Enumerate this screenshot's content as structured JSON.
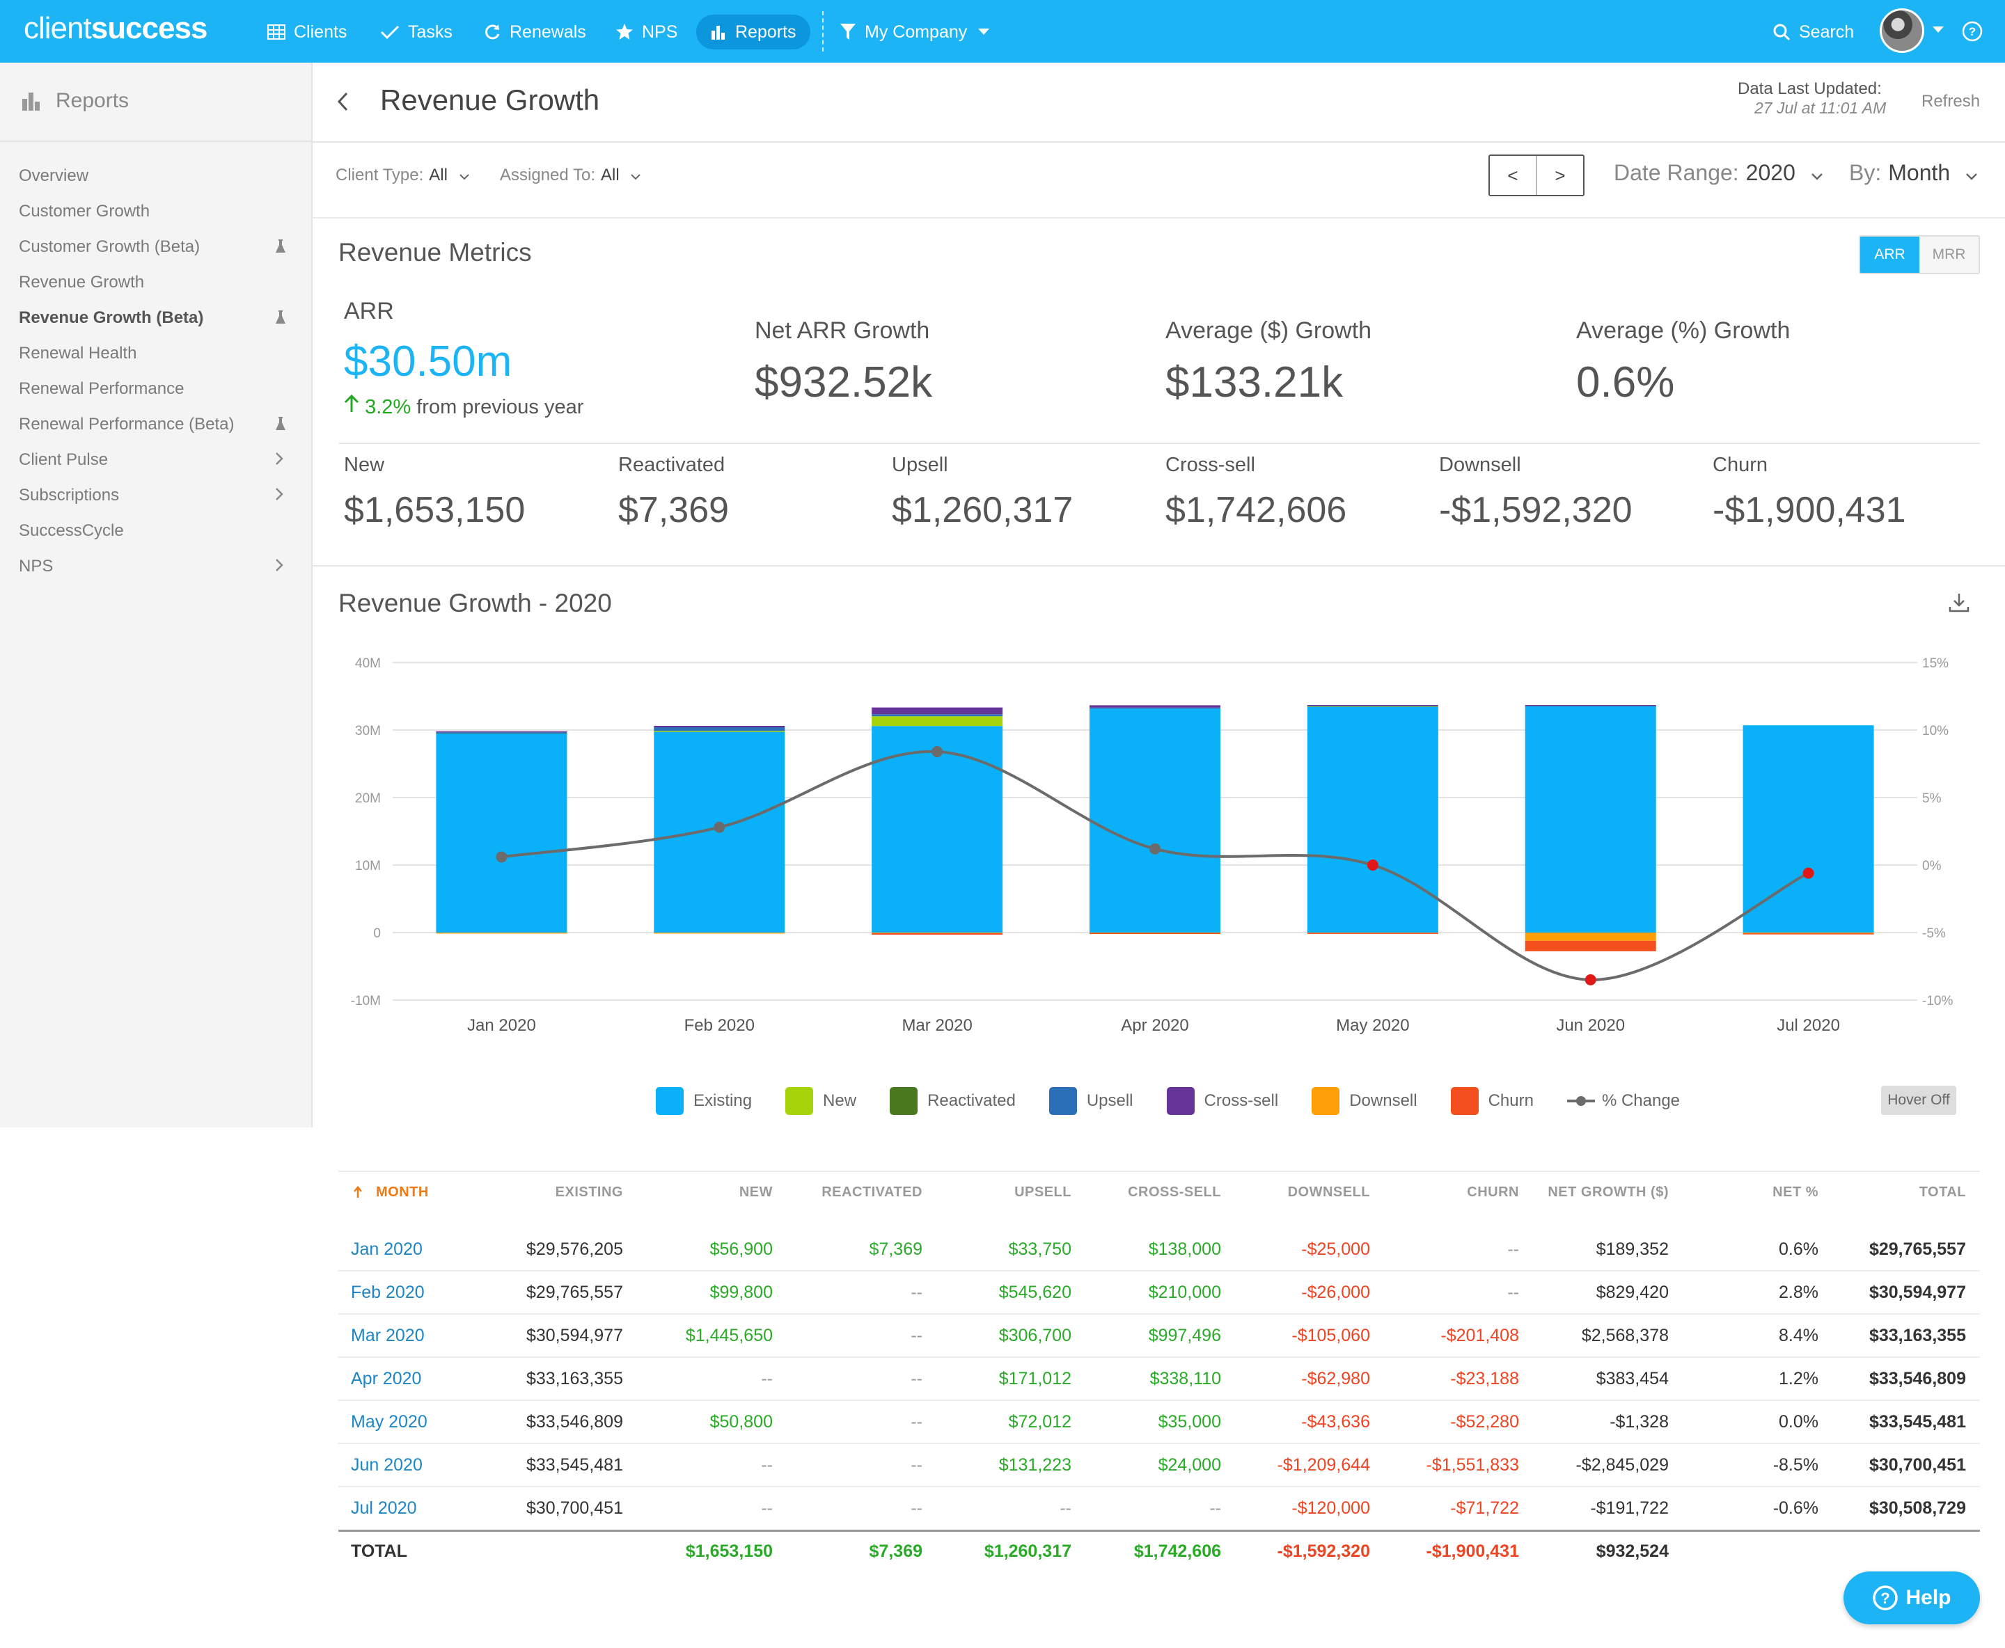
{
  "nav": {
    "logo_thin": "client",
    "logo_bold": "success",
    "items": [
      {
        "label": "Clients",
        "icon": "table-icon"
      },
      {
        "label": "Tasks",
        "icon": "check-icon"
      },
      {
        "label": "Renewals",
        "icon": "refresh-icon"
      },
      {
        "label": "NPS",
        "icon": "star-icon"
      },
      {
        "label": "Reports",
        "icon": "bar-chart-icon"
      }
    ],
    "company": "My Company",
    "search": "Search"
  },
  "sidebar": {
    "title": "Reports",
    "items": [
      {
        "label": "Overview"
      },
      {
        "label": "Customer Growth"
      },
      {
        "label": "Customer Growth (Beta)"
      },
      {
        "label": "Revenue Growth"
      },
      {
        "label": "Revenue Growth (Beta)"
      },
      {
        "label": "Renewal Health"
      },
      {
        "label": "Renewal Performance"
      },
      {
        "label": "Renewal Performance (Beta)"
      },
      {
        "label": "Client Pulse"
      },
      {
        "label": "Subscriptions"
      },
      {
        "label": "SuccessCycle"
      },
      {
        "label": "NPS"
      }
    ]
  },
  "header": {
    "title": "Revenue Growth",
    "last_updated_label": "Data Last Updated:",
    "last_updated_value": "27 Jul at 11:01 AM",
    "refresh": "Refresh"
  },
  "filters": {
    "client_type_label": "Client Type:",
    "client_type_value": "All",
    "assigned_label": "Assigned To:",
    "assigned_value": "All",
    "prev": "<",
    "next": ">",
    "date_range_label": "Date Range:",
    "date_range_value": "2020",
    "by_label": "By:",
    "by_value": "Month"
  },
  "metrics": {
    "title": "Revenue Metrics",
    "toggle_on": "ARR",
    "toggle_off": "MRR",
    "arr_label": "ARR",
    "arr_value": "$30.50m",
    "arr_change": "3.2%",
    "arr_change_suffix": "from previous year",
    "net_label": "Net ARR Growth",
    "net_value": "$932.52k",
    "avg_d_label": "Average ($) Growth",
    "avg_d_value": "$133.21k",
    "avg_p_label": "Average (%) Growth",
    "avg_p_value": "0.6%",
    "breakdown": [
      {
        "label": "New",
        "value": "$1,653,150"
      },
      {
        "label": "Reactivated",
        "value": "$7,369"
      },
      {
        "label": "Upsell",
        "value": "$1,260,317"
      },
      {
        "label": "Cross-sell",
        "value": "$1,742,606"
      },
      {
        "label": "Downsell",
        "value": "-$1,592,320"
      },
      {
        "label": "Churn",
        "value": "-$1,900,431"
      }
    ]
  },
  "chart_title": "Revenue Growth - 2020",
  "hover_off": "Hover Off",
  "colors": {
    "Existing": "#0ab0f8",
    "New": "#a6d30a",
    "Reactivated": "#4a7a1f",
    "Upsell": "#2a6fb8",
    "Cross-sell": "#663399",
    "Downsell": "#ff9f08",
    "Churn": "#f24f1c",
    "% Change": "#6b6b6b"
  },
  "chart_data": {
    "type": "bar",
    "title": "Revenue Growth - 2020",
    "stacked": true,
    "categories": [
      "Jan 2020",
      "Feb 2020",
      "Mar 2020",
      "Apr 2020",
      "May 2020",
      "Jun 2020",
      "Jul 2020"
    ],
    "ylim": [
      -10000000,
      40000000
    ],
    "yticks": [
      "40M",
      "30M",
      "20M",
      "10M",
      "0",
      "-10M"
    ],
    "y2lim": [
      -10,
      15
    ],
    "y2ticks": [
      "15%",
      "10%",
      "5%",
      "0%",
      "-5%",
      "-10%"
    ],
    "series": [
      {
        "name": "Existing",
        "values": [
          29576205,
          29765557,
          30594977,
          33163355,
          33546809,
          33545481,
          30700451
        ]
      },
      {
        "name": "New",
        "values": [
          56900,
          99800,
          1445650,
          0,
          50800,
          0,
          0
        ]
      },
      {
        "name": "Reactivated",
        "values": [
          7369,
          0,
          0,
          0,
          0,
          0,
          0
        ]
      },
      {
        "name": "Upsell",
        "values": [
          33750,
          545620,
          306700,
          171012,
          72012,
          131223,
          0
        ]
      },
      {
        "name": "Cross-sell",
        "values": [
          138000,
          210000,
          997496,
          338110,
          35000,
          24000,
          0
        ]
      },
      {
        "name": "Downsell",
        "values": [
          -25000,
          -26000,
          -105060,
          -62980,
          -43636,
          -1209644,
          -120000
        ]
      },
      {
        "name": "Churn",
        "values": [
          0,
          0,
          -201408,
          -23188,
          -52280,
          -1551833,
          -71722
        ]
      },
      {
        "name": "% Change",
        "axis": "right",
        "values": [
          0.6,
          2.8,
          8.4,
          1.2,
          0.0,
          -8.5,
          -0.6
        ]
      }
    ],
    "grid": true,
    "legend": "bottom"
  },
  "table": {
    "headers": [
      "MONTH",
      "EXISTING",
      "NEW",
      "REACTIVATED",
      "UPSELL",
      "CROSS-SELL",
      "DOWNSELL",
      "CHURN",
      "NET GROWTH ($)",
      "NET %",
      "TOTAL"
    ],
    "rows": [
      [
        "Jan 2020",
        "$29,576,205",
        "$56,900",
        "$7,369",
        "$33,750",
        "$138,000",
        "-$25,000",
        "--",
        "$189,352",
        "0.6%",
        "$29,765,557"
      ],
      [
        "Feb 2020",
        "$29,765,557",
        "$99,800",
        "--",
        "$545,620",
        "$210,000",
        "-$26,000",
        "--",
        "$829,420",
        "2.8%",
        "$30,594,977"
      ],
      [
        "Mar 2020",
        "$30,594,977",
        "$1,445,650",
        "--",
        "$306,700",
        "$997,496",
        "-$105,060",
        "-$201,408",
        "$2,568,378",
        "8.4%",
        "$33,163,355"
      ],
      [
        "Apr 2020",
        "$33,163,355",
        "--",
        "--",
        "$171,012",
        "$338,110",
        "-$62,980",
        "-$23,188",
        "$383,454",
        "1.2%",
        "$33,546,809"
      ],
      [
        "May 2020",
        "$33,546,809",
        "$50,800",
        "--",
        "$72,012",
        "$35,000",
        "-$43,636",
        "-$52,280",
        "-$1,328",
        "0.0%",
        "$33,545,481"
      ],
      [
        "Jun 2020",
        "$33,545,481",
        "--",
        "--",
        "$131,223",
        "$24,000",
        "-$1,209,644",
        "-$1,551,833",
        "-$2,845,029",
        "-8.5%",
        "$30,700,451"
      ],
      [
        "Jul 2020",
        "$30,700,451",
        "--",
        "--",
        "--",
        "--",
        "-$120,000",
        "-$71,722",
        "-$191,722",
        "-0.6%",
        "$30,508,729"
      ]
    ],
    "total": [
      "TOTAL",
      "",
      "$1,653,150",
      "$7,369",
      "$1,260,317",
      "$1,742,606",
      "-$1,592,320",
      "-$1,900,431",
      "$932,524",
      "",
      ""
    ]
  },
  "help": "Help"
}
